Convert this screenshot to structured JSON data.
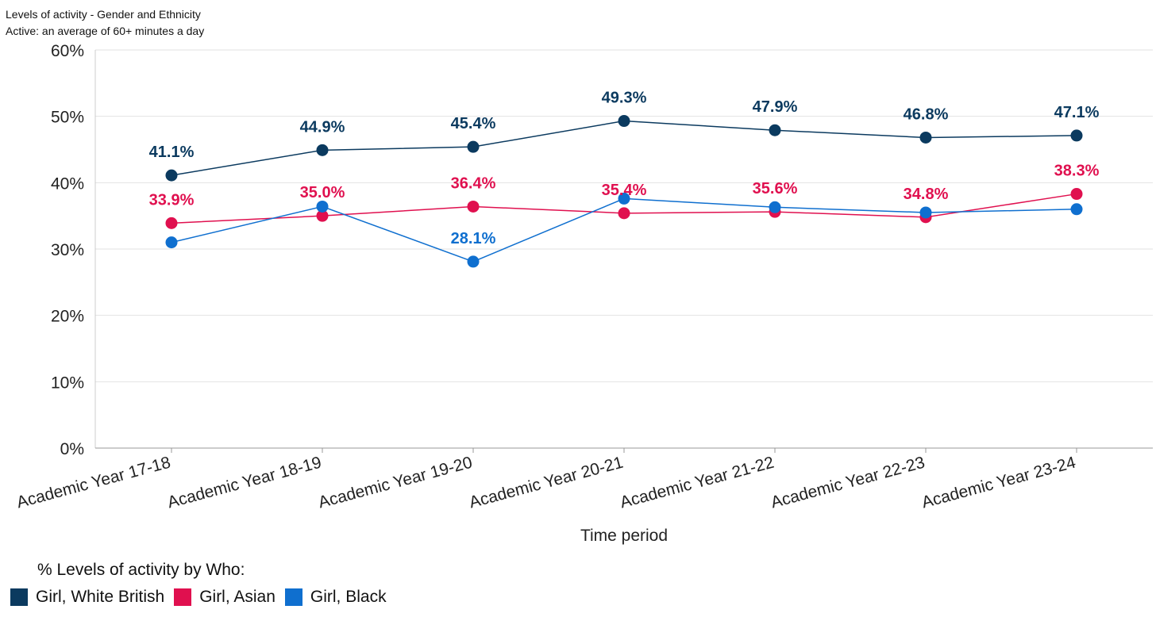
{
  "header": {
    "title": "Levels of activity - Gender and Ethnicity",
    "subtitle": "Active: an average of 60+ minutes a day"
  },
  "chart_data": {
    "type": "line",
    "title": "Levels of activity - Gender and Ethnicity",
    "subtitle": "Active: an average of 60+ minutes a day",
    "xlabel": "Time period",
    "ylabel": "",
    "ylim": [
      0,
      60
    ],
    "yticks": [
      "0%",
      "10%",
      "20%",
      "30%",
      "40%",
      "50%",
      "60%"
    ],
    "grid": true,
    "categories": [
      "Academic Year 17-18",
      "Academic Year 18-19",
      "Academic Year 19-20",
      "Academic Year 20-21",
      "Academic Year 21-22",
      "Academic Year 22-23",
      "Academic Year 23-24"
    ],
    "series": [
      {
        "name": "Girl, White British",
        "color": "#0b3a5f",
        "values": [
          41.1,
          44.9,
          45.4,
          49.3,
          47.9,
          46.8,
          47.1
        ],
        "labels": [
          "41.1%",
          "44.9%",
          "45.4%",
          "49.3%",
          "47.9%",
          "46.8%",
          "47.1%"
        ]
      },
      {
        "name": "Girl, Asian",
        "color": "#e0104f",
        "values": [
          33.9,
          35.0,
          36.4,
          35.4,
          35.6,
          34.8,
          38.3
        ],
        "labels": [
          "33.9%",
          "35.0%",
          "36.4%",
          "35.4%",
          "35.6%",
          "34.8%",
          "38.3%"
        ]
      },
      {
        "name": "Girl, Black",
        "color": "#0f6fcf",
        "values": [
          31.0,
          36.4,
          28.1,
          37.6,
          36.3,
          35.5,
          36.0
        ],
        "labels": [
          "",
          "",
          "28.1%",
          "",
          "",
          "",
          ""
        ]
      }
    ],
    "legend": {
      "title": "% Levels of activity by Who:",
      "placement": "bottom-left"
    }
  }
}
